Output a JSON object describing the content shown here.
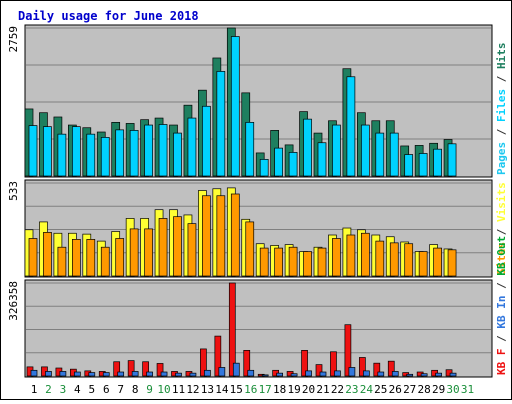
{
  "title": "Daily usage for June 2018",
  "colors": {
    "background": "#ffffff",
    "panel": "#c0c0c0",
    "title": "#0000cc",
    "hits": "#1e7f5f",
    "files": "#00d2ff",
    "pages": "#1ec8f0",
    "visits": "#ffff33",
    "sites": "#ff9900",
    "kbin": "#3377dd",
    "kbout": "#00aa33",
    "kbf": "#ee1111",
    "weekend_day": "#1a8f3a",
    "weekday_day": "#000000"
  },
  "chart_data": [
    {
      "type": "bar",
      "panel": "hits-files-pages",
      "y_max_label": "2759",
      "ylim": [
        0,
        2759
      ],
      "categories": [
        "1",
        "2",
        "3",
        "4",
        "5",
        "6",
        "7",
        "8",
        "9",
        "10",
        "11",
        "12",
        "13",
        "14",
        "15",
        "16",
        "17",
        "18",
        "19",
        "20",
        "21",
        "22",
        "23",
        "24",
        "25",
        "26",
        "27",
        "28",
        "29",
        "30"
      ],
      "series": [
        {
          "name": "Hits",
          "values": [
            1250,
            1180,
            1100,
            950,
            900,
            820,
            1000,
            980,
            1050,
            1080,
            950,
            1320,
            1600,
            2200,
            2759,
            1550,
            430,
            850,
            580,
            1200,
            800,
            1030,
            2000,
            1180,
            1030,
            1030,
            560,
            570,
            610,
            680
          ]
        },
        {
          "name": "Files",
          "values": [
            940,
            920,
            780,
            920,
            780,
            720,
            860,
            850,
            950,
            960,
            800,
            1080,
            1300,
            1950,
            2600,
            1000,
            310,
            520,
            440,
            1060,
            620,
            950,
            1850,
            950,
            800,
            800,
            400,
            420,
            500,
            600
          ]
        }
      ],
      "legend_parts": [
        "Pages",
        " / ",
        "Files",
        " / ",
        "Hits"
      ]
    },
    {
      "type": "bar",
      "panel": "visits-sites",
      "y_max_label": "533",
      "ylim": [
        0,
        533
      ],
      "categories": [
        "1",
        "2",
        "3",
        "4",
        "5",
        "6",
        "7",
        "8",
        "9",
        "10",
        "11",
        "12",
        "13",
        "14",
        "15",
        "16",
        "17",
        "18",
        "19",
        "20",
        "21",
        "22",
        "23",
        "24",
        "25",
        "26",
        "27",
        "28",
        "29",
        "30"
      ],
      "series": [
        {
          "name": "Visits",
          "values": [
            265,
            310,
            245,
            245,
            240,
            200,
            255,
            330,
            330,
            380,
            380,
            350,
            490,
            500,
            505,
            325,
            185,
            175,
            180,
            140,
            165,
            235,
            275,
            265,
            235,
            225,
            195,
            140,
            180,
            155
          ]
        },
        {
          "name": "Sites",
          "values": [
            215,
            250,
            165,
            210,
            210,
            165,
            215,
            270,
            270,
            330,
            340,
            300,
            460,
            460,
            470,
            310,
            160,
            160,
            165,
            140,
            160,
            215,
            235,
            245,
            200,
            190,
            185,
            140,
            160,
            150
          ]
        }
      ],
      "legend_parts": [
        "Sites",
        " / ",
        "Visits"
      ]
    },
    {
      "type": "bar",
      "panel": "kbytes",
      "y_max_label": "326358",
      "ylim": [
        0,
        326358
      ],
      "categories": [
        "1",
        "2",
        "3",
        "4",
        "5",
        "6",
        "7",
        "8",
        "9",
        "10",
        "11",
        "12",
        "13",
        "14",
        "15",
        "16",
        "17",
        "18",
        "19",
        "20",
        "21",
        "22",
        "23",
        "24",
        "25",
        "26",
        "27",
        "28",
        "29",
        "30"
      ],
      "series": [
        {
          "name": "KB F",
          "values": [
            32000,
            32000,
            28000,
            24000,
            18000,
            16000,
            50000,
            54000,
            50000,
            44000,
            16000,
            16000,
            95000,
            140000,
            326358,
            90000,
            6000,
            20000,
            16000,
            90000,
            40000,
            85000,
            180000,
            65000,
            45000,
            52000,
            12000,
            14000,
            20000,
            22000
          ]
        },
        {
          "name": "KB In",
          "values": [
            20000,
            16000,
            16000,
            14000,
            12000,
            12000,
            14000,
            16000,
            14000,
            14000,
            10000,
            10000,
            20000,
            30000,
            45000,
            20000,
            4000,
            10000,
            8000,
            18000,
            14000,
            18000,
            30000,
            18000,
            14000,
            16000,
            6000,
            8000,
            10000,
            10000
          ]
        }
      ],
      "legend_parts": [
        "KB F",
        " / ",
        "KB In",
        " / ",
        "KB Out"
      ]
    }
  ],
  "x_axis": {
    "days": [
      "1",
      "2",
      "3",
      "4",
      "5",
      "6",
      "7",
      "8",
      "9",
      "10",
      "11",
      "12",
      "13",
      "14",
      "15",
      "16",
      "17",
      "18",
      "19",
      "20",
      "21",
      "22",
      "23",
      "24",
      "25",
      "26",
      "27",
      "28",
      "29",
      "30",
      "31"
    ],
    "weekend": [
      "2",
      "3",
      "9",
      "10",
      "16",
      "17",
      "23",
      "24",
      "30",
      "31"
    ]
  }
}
